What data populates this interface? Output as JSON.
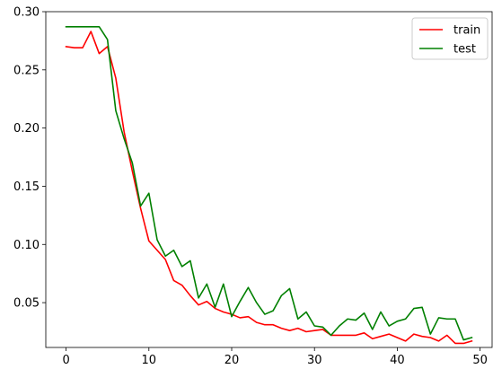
{
  "chart_data": {
    "type": "line",
    "title": "",
    "xlabel": "",
    "ylabel": "",
    "xlim": [
      -2.45,
      51.45
    ],
    "ylim": [
      0.0115,
      0.3
    ],
    "x_ticks": [
      0,
      10,
      20,
      30,
      40,
      50
    ],
    "y_ticks": [
      0.05,
      0.1,
      0.15,
      0.2,
      0.25,
      0.3
    ],
    "x_tick_labels": [
      "0",
      "10",
      "20",
      "30",
      "40",
      "50"
    ],
    "y_tick_labels": [
      "0.05",
      "0.10",
      "0.15",
      "0.20",
      "0.25",
      "0.30"
    ],
    "grid": false,
    "legend_position": "top-right",
    "series": [
      {
        "name": "train",
        "color": "#ff0000",
        "x": [
          0,
          1,
          2,
          3,
          4,
          5,
          6,
          7,
          8,
          9,
          10,
          11,
          12,
          13,
          14,
          15,
          16,
          17,
          18,
          19,
          20,
          21,
          22,
          23,
          24,
          25,
          26,
          27,
          28,
          29,
          30,
          31,
          32,
          33,
          34,
          35,
          36,
          37,
          38,
          39,
          40,
          41,
          42,
          43,
          44,
          45,
          46,
          47,
          48,
          49
        ],
        "values": [
          0.27,
          0.269,
          0.269,
          0.283,
          0.264,
          0.27,
          0.243,
          0.197,
          0.163,
          0.131,
          0.103,
          0.095,
          0.087,
          0.069,
          0.065,
          0.056,
          0.048,
          0.051,
          0.045,
          0.042,
          0.04,
          0.037,
          0.038,
          0.033,
          0.031,
          0.031,
          0.028,
          0.026,
          0.028,
          0.025,
          0.026,
          0.027,
          0.022,
          0.022,
          0.022,
          0.022,
          0.024,
          0.019,
          0.021,
          0.023,
          0.02,
          0.017,
          0.023,
          0.021,
          0.02,
          0.017,
          0.022,
          0.015,
          0.015,
          0.017
        ]
      },
      {
        "name": "test",
        "color": "#008000",
        "x": [
          0,
          1,
          2,
          3,
          4,
          5,
          6,
          7,
          8,
          9,
          10,
          11,
          12,
          13,
          14,
          15,
          16,
          17,
          18,
          19,
          20,
          21,
          22,
          23,
          24,
          25,
          26,
          27,
          28,
          29,
          30,
          31,
          32,
          33,
          34,
          35,
          36,
          37,
          38,
          39,
          40,
          41,
          42,
          43,
          44,
          45,
          46,
          47,
          48,
          49
        ],
        "values": [
          0.287,
          0.287,
          0.287,
          0.287,
          0.287,
          0.276,
          0.215,
          0.191,
          0.17,
          0.133,
          0.144,
          0.104,
          0.09,
          0.095,
          0.081,
          0.086,
          0.054,
          0.066,
          0.046,
          0.066,
          0.038,
          0.051,
          0.063,
          0.05,
          0.04,
          0.043,
          0.056,
          0.062,
          0.036,
          0.042,
          0.03,
          0.029,
          0.022,
          0.03,
          0.036,
          0.035,
          0.041,
          0.027,
          0.042,
          0.03,
          0.034,
          0.036,
          0.045,
          0.046,
          0.023,
          0.037,
          0.036,
          0.036,
          0.018,
          0.02
        ]
      }
    ]
  }
}
